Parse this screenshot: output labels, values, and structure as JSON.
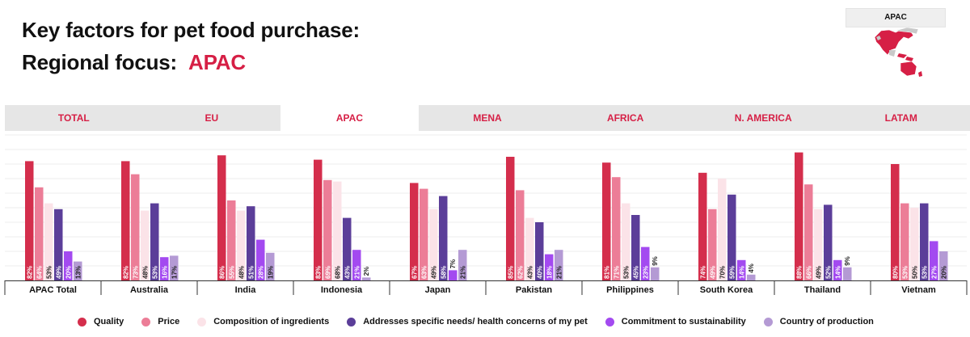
{
  "header": {
    "title_line1": "Key factors for pet food purchase:",
    "title_line2_prefix": "Regional focus:",
    "region_name": "APAC"
  },
  "map": {
    "label": "APAC"
  },
  "tabs": [
    {
      "label": "TOTAL",
      "active": false
    },
    {
      "label": "EU",
      "active": false
    },
    {
      "label": "APAC",
      "active": true
    },
    {
      "label": "MENA",
      "active": false
    },
    {
      "label": "AFRICA",
      "active": false
    },
    {
      "label": "N. AMERICA",
      "active": false
    },
    {
      "label": "LATAM",
      "active": false
    }
  ],
  "colors": {
    "accent": "#d61f45",
    "series": [
      "#d42e4c",
      "#ec7d97",
      "#fbe3e8",
      "#5b3e99",
      "#a34af0",
      "#b49ad4"
    ]
  },
  "chart_data": {
    "type": "bar",
    "title": "Key factors for pet food purchase: Regional focus: APAC",
    "categories": [
      "APAC Total",
      "Australia",
      "India",
      "Indonesia",
      "Japan",
      "Pakistan",
      "Philippines",
      "South Korea",
      "Thailand",
      "Vietnam"
    ],
    "series": [
      {
        "name": "Quality",
        "values": [
          82,
          82,
          86,
          83,
          67,
          85,
          81,
          74,
          88,
          80
        ]
      },
      {
        "name": "Price",
        "values": [
          64,
          73,
          55,
          69,
          63,
          62,
          71,
          49,
          66,
          53
        ]
      },
      {
        "name": "Composition of ingredients",
        "values": [
          53,
          48,
          48,
          68,
          49,
          43,
          53,
          70,
          49,
          50
        ]
      },
      {
        "name": "Addresses specific needs/ health concerns of my pet",
        "values": [
          49,
          53,
          51,
          43,
          58,
          40,
          45,
          59,
          52,
          53
        ]
      },
      {
        "name": "Commitment to sustainability",
        "values": [
          20,
          16,
          28,
          21,
          7,
          18,
          23,
          14,
          14,
          27
        ]
      },
      {
        "name": "Country of production",
        "values": [
          13,
          17,
          19,
          2,
          21,
          21,
          9,
          4,
          9,
          20
        ]
      }
    ],
    "ylim": [
      0,
      100
    ],
    "grid": true,
    "legend_position": "bottom",
    "value_suffix": "%"
  }
}
